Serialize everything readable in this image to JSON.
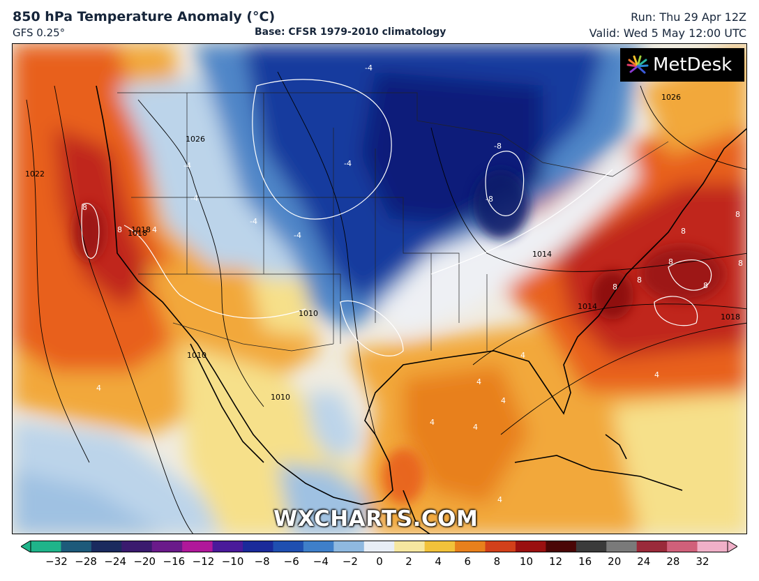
{
  "header": {
    "title": "850 hPa Temperature Anomaly (°C)",
    "model": "GFS 0.25°",
    "base": "Base: CFSR 1979-2010 climatology",
    "run": "Run: Thu 29 Apr 12Z",
    "valid": "Valid: Wed 5 May 12:00 UTC"
  },
  "logo": {
    "text": "MetDesk",
    "icon": "metdesk-burst-icon"
  },
  "watermark": "WXCHARTS.COM",
  "colorbar": {
    "ticks": [
      "−32",
      "−28",
      "−24",
      "−20",
      "−16",
      "−12",
      "−10",
      "−8",
      "−6",
      "−4",
      "−2",
      "0",
      "2",
      "4",
      "6",
      "8",
      "10",
      "12",
      "16",
      "20",
      "24",
      "28",
      "32"
    ],
    "colors": [
      "#1fb48a",
      "#1d5a7a",
      "#1a2a5e",
      "#3a1a6e",
      "#6a1a8a",
      "#b0189a",
      "#4a1a9a",
      "#1a2a9a",
      "#1f4fb0",
      "#3f7fc9",
      "#8fb9e0",
      "#e8eef6",
      "#f6e7a0",
      "#f2c23a",
      "#e8801c",
      "#d2401a",
      "#9a1010",
      "#4a0606",
      "#3a3a3a",
      "#7a7a7a",
      "#9a2a3a",
      "#d0607a",
      "#f0b0c8"
    ],
    "colors_meaning": "scale from cold (left) to warm (right)"
  },
  "map": {
    "contour_labels": {
      "isobars": [
        "1022",
        "1026",
        "1018",
        "1010",
        "1010",
        "1014",
        "1014",
        "1018",
        "1010",
        "1018",
        "1026"
      ],
      "anomaly_warm": [
        "8",
        "8",
        "8",
        "8",
        "8",
        "8",
        "8",
        "8",
        "8",
        "4",
        "4",
        "4",
        "4",
        "4",
        "4",
        "4",
        "4",
        "4"
      ],
      "anomaly_cold": [
        "-4",
        "-4",
        "-4",
        "-4",
        "-8",
        "-8",
        "-4",
        "-4"
      ]
    },
    "fill_colors": {
      "strong_warm": "#c0281a",
      "warm": "#e8601c",
      "mild_warm": "#f2a83a",
      "slight_warm": "#f6e08a",
      "neutral": "#eef0f4",
      "slight_cold": "#bcd4ea",
      "cold": "#4f86c8",
      "strong_cold": "#123a9e",
      "very_cold": "#0b1f7a"
    }
  }
}
